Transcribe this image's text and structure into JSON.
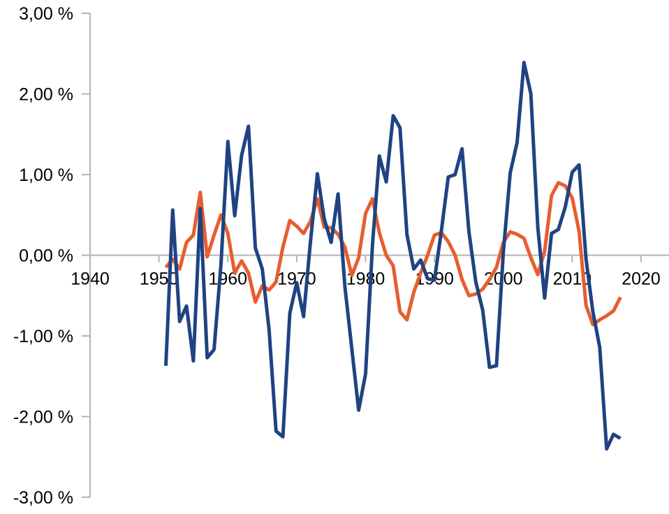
{
  "chart_data": {
    "type": "line",
    "title": "",
    "xlabel": "",
    "ylabel": "",
    "xlim": [
      1940,
      2020
    ],
    "ylim": [
      -3,
      3
    ],
    "x_ticks": [
      1940,
      1950,
      1960,
      1970,
      1980,
      1990,
      2000,
      2010,
      2020
    ],
    "x_tick_labels": [
      "1940",
      "1950",
      "1960",
      "1970",
      "1980",
      "1990",
      "2000",
      "2010",
      "2020"
    ],
    "y_ticks": [
      3,
      2,
      1,
      0,
      -1,
      -2,
      -3
    ],
    "y_tick_labels": [
      "3,00 %",
      "2,00 %",
      "1,00 %",
      "0,00 %",
      "-1,00 %",
      "-2,00 %",
      "-3,00 %"
    ],
    "grid": false,
    "legend": "none",
    "x": [
      1951,
      1952,
      1953,
      1954,
      1955,
      1956,
      1957,
      1958,
      1959,
      1960,
      1961,
      1962,
      1963,
      1964,
      1965,
      1966,
      1967,
      1968,
      1969,
      1970,
      1971,
      1972,
      1973,
      1974,
      1975,
      1976,
      1977,
      1978,
      1979,
      1980,
      1981,
      1982,
      1983,
      1984,
      1985,
      1986,
      1987,
      1988,
      1989,
      1990,
      1991,
      1992,
      1993,
      1994,
      1995,
      1996,
      1997,
      1998,
      1999,
      2000,
      2001,
      2002,
      2003,
      2004,
      2005,
      2006,
      2007,
      2008,
      2009,
      2010,
      2011,
      2012,
      2013,
      2014,
      2015,
      2016,
      2017
    ],
    "series": [
      {
        "color": "#e85d2f",
        "values": [
          -0.15,
          -0.05,
          -0.17,
          0.16,
          0.25,
          0.78,
          -0.02,
          0.25,
          0.5,
          0.27,
          -0.22,
          -0.07,
          -0.22,
          -0.58,
          -0.38,
          -0.43,
          -0.33,
          0.1,
          0.43,
          0.36,
          0.27,
          0.42,
          0.7,
          0.35,
          0.34,
          0.26,
          0.1,
          -0.25,
          -0.03,
          0.52,
          0.7,
          0.28,
          0.0,
          -0.13,
          -0.7,
          -0.8,
          -0.46,
          -0.22,
          0.0,
          0.25,
          0.28,
          0.17,
          0.0,
          -0.3,
          -0.5,
          -0.48,
          -0.42,
          -0.3,
          -0.15,
          0.16,
          0.29,
          0.26,
          0.21,
          -0.03,
          -0.24,
          0.05,
          0.74,
          0.9,
          0.86,
          0.71,
          0.3,
          -0.62,
          -0.86,
          -0.8,
          -0.75,
          -0.69,
          -0.52
        ]
      },
      {
        "color": "#1f4382",
        "values": [
          -1.37,
          0.56,
          -0.82,
          -0.63,
          -1.31,
          0.58,
          -1.27,
          -1.17,
          -0.12,
          1.41,
          0.49,
          1.24,
          1.6,
          0.09,
          -0.17,
          -0.93,
          -2.18,
          -2.25,
          -0.72,
          -0.34,
          -0.76,
          0.17,
          1.01,
          0.45,
          0.16,
          0.76,
          -0.39,
          -1.16,
          -1.92,
          -1.47,
          0.13,
          1.23,
          0.91,
          1.73,
          1.58,
          0.26,
          -0.17,
          -0.06,
          -0.29,
          -0.31,
          0.3,
          0.97,
          1.0,
          1.32,
          0.3,
          -0.33,
          -0.68,
          -1.39,
          -1.37,
          0.04,
          1.02,
          1.4,
          2.39,
          2.0,
          0.35,
          -0.53,
          0.27,
          0.32,
          0.6,
          1.03,
          1.12,
          -0.04,
          -0.7,
          -1.14,
          -2.4,
          -2.22,
          -2.27
        ]
      }
    ]
  }
}
